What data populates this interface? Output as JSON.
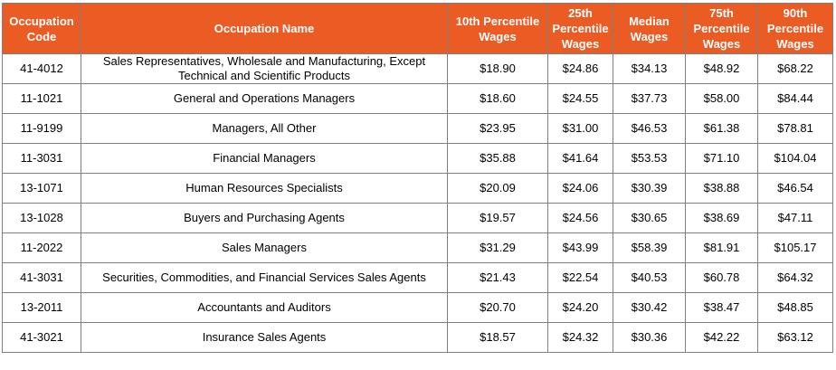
{
  "headers": {
    "code": [
      "Occupation",
      "Code"
    ],
    "name": "Occupation Name",
    "p10": [
      "10th Percentile",
      "Wages"
    ],
    "p25": [
      "25th",
      "Percentile",
      "Wages"
    ],
    "median": [
      "Median",
      "Wages"
    ],
    "p75": [
      "75th",
      "Percentile",
      "Wages"
    ],
    "p90": [
      "90th",
      "Percentile",
      "Wages"
    ]
  },
  "rows": [
    {
      "code": "41-4012",
      "name": [
        "Sales Representatives, Wholesale and Manufacturing, Except",
        "Technical and Scientific Products"
      ],
      "p10": "$18.90",
      "p25": "$24.86",
      "median": "$34.13",
      "p75": "$48.92",
      "p90": "$68.22"
    },
    {
      "code": "11-1021",
      "name": [
        "General and Operations Managers"
      ],
      "p10": "$18.60",
      "p25": "$24.55",
      "median": "$37.73",
      "p75": "$58.00",
      "p90": "$84.44"
    },
    {
      "code": "11-9199",
      "name": [
        "Managers, All Other"
      ],
      "p10": "$23.95",
      "p25": "$31.00",
      "median": "$46.53",
      "p75": "$61.38",
      "p90": "$78.81"
    },
    {
      "code": "11-3031",
      "name": [
        "Financial Managers"
      ],
      "p10": "$35.88",
      "p25": "$41.64",
      "median": "$53.53",
      "p75": "$71.10",
      "p90": "$104.04"
    },
    {
      "code": "13-1071",
      "name": [
        "Human Resources Specialists"
      ],
      "p10": "$20.09",
      "p25": "$24.06",
      "median": "$30.39",
      "p75": "$38.88",
      "p90": "$46.54"
    },
    {
      "code": "13-1028",
      "name": [
        "Buyers and Purchasing Agents"
      ],
      "p10": "$19.57",
      "p25": "$24.56",
      "median": "$30.65",
      "p75": "$38.69",
      "p90": "$47.11"
    },
    {
      "code": "11-2022",
      "name": [
        "Sales Managers"
      ],
      "p10": "$31.29",
      "p25": "$43.99",
      "median": "$58.39",
      "p75": "$81.91",
      "p90": "$105.17"
    },
    {
      "code": "41-3031",
      "name": [
        "Securities, Commodities, and Financial Services Sales Agents"
      ],
      "p10": "$21.43",
      "p25": "$22.54",
      "median": "$40.53",
      "p75": "$60.78",
      "p90": "$64.32"
    },
    {
      "code": "13-2011",
      "name": [
        "Accountants and Auditors"
      ],
      "p10": "$20.70",
      "p25": "$24.20",
      "median": "$30.42",
      "p75": "$38.47",
      "p90": "$48.85"
    },
    {
      "code": "41-3021",
      "name": [
        "Insurance Sales Agents"
      ],
      "p10": "$18.57",
      "p25": "$24.32",
      "median": "$30.36",
      "p75": "$42.22",
      "p90": "$63.12"
    }
  ]
}
